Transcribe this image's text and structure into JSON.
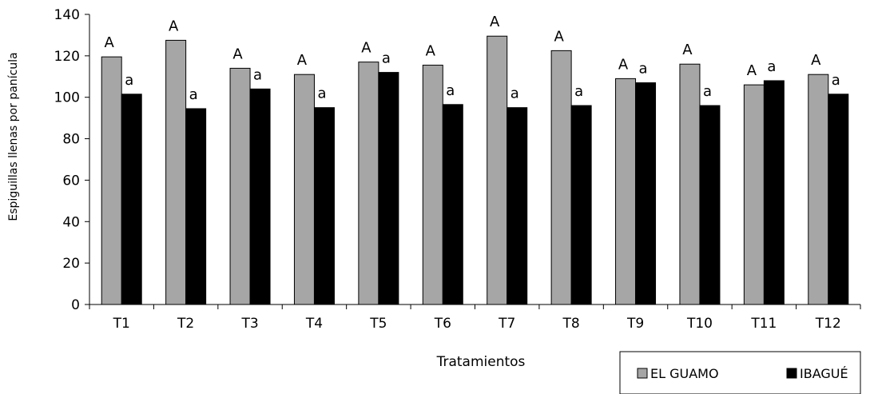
{
  "chart_data": {
    "type": "bar",
    "categories": [
      "T1",
      "T2",
      "T3",
      "T4",
      "T5",
      "T6",
      "T7",
      "T8",
      "T9",
      "T10",
      "T11",
      "T12"
    ],
    "series": [
      {
        "name": "EL GUAMO",
        "color": "#a6a6a6",
        "values": [
          119.5,
          127.5,
          114,
          111,
          117,
          115.5,
          129.5,
          122.5,
          109,
          116,
          106,
          111
        ],
        "labels": [
          "A",
          "A",
          "A",
          "A",
          "A",
          "A",
          "A",
          "A",
          "A",
          "A",
          "A",
          "A"
        ]
      },
      {
        "name": "IBAGUÉ",
        "color": "#000000",
        "values": [
          101.5,
          94.5,
          104,
          95,
          112,
          96.5,
          95,
          96,
          107,
          96,
          108,
          101.5
        ],
        "labels": [
          "a",
          "a",
          "a",
          "a",
          "a",
          "a",
          "a",
          "a",
          "a",
          "a",
          "a",
          "a"
        ]
      }
    ],
    "title": "",
    "xlabel": "Tratamientos",
    "ylabel": "Espiguillas llenas por panícula",
    "ylim": [
      0,
      140
    ],
    "yticks": [
      0,
      20,
      40,
      60,
      80,
      100,
      120,
      140
    ],
    "grid": false,
    "legend_position": "bottom-right"
  }
}
